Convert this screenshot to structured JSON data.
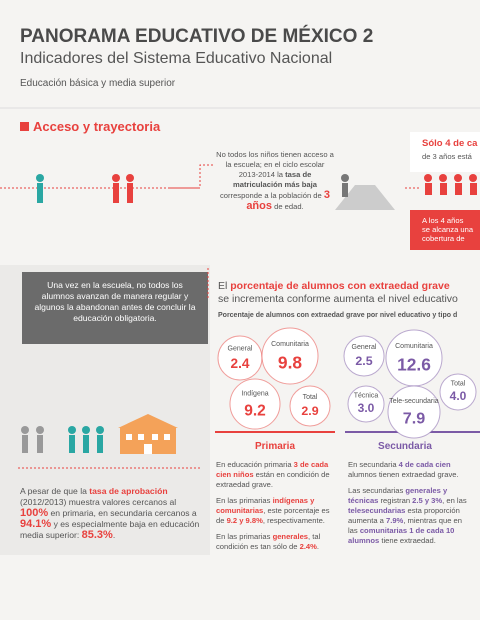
{
  "header": {
    "title": "PANORAMA EDUCATIVO DE MÉXICO 2",
    "subtitle": "Indicadores del Sistema Educativo Nacional",
    "scope": "Educación básica y media superior"
  },
  "access": {
    "heading": "Acceso y trayectoria",
    "note": [
      "No todos los niños tienen acceso a la escuela; en el ciclo escolar 2013-2014 la ",
      "tasa de matriculación más baja",
      " corresponde a la población de ",
      "3 años",
      " de edad."
    ],
    "side_title": "Sólo 4 de ca",
    "side_sub": "de 3 años está",
    "side_note": [
      "A los 4 años",
      "se alcanza una",
      "cobertura de"
    ]
  },
  "trajectory": {
    "intro": "Una vez en la escuela, no todos los alumnos avanzan de manera regular y algunos la abandonan antes de concluir la educación obligatoria.",
    "approval": [
      "A pesar de que la ",
      "tasa de aprobación",
      " (2012/2013) muestra valores cercanos al ",
      "100%",
      " en primaria, en secundaria cercanos a ",
      "94.1%",
      " y es especialmente baja en educación media superior: ",
      "85.3%",
      "."
    ]
  },
  "overage": {
    "title": [
      "El ",
      "porcentaje de alumnos con extraedad grave"
    ],
    "subtitle": "se incrementa conforme aumenta el nivel educativo",
    "caption": "Porcentaje de alumnos con extraedad grave por nivel educativo y tipo d",
    "primaria": {
      "label": "Primaria",
      "bubbles": [
        {
          "name": "General",
          "value": "2.4"
        },
        {
          "name": "Comunitaria",
          "value": "9.8"
        },
        {
          "name": "Indígena",
          "value": "9.2"
        },
        {
          "name": "Total",
          "value": "2.9"
        }
      ],
      "paragraphs": [
        [
          "En educación primaria ",
          "3 de cada cien niños",
          " están en condición de extraedad grave."
        ],
        [
          "En las primarias ",
          "indígenas y comunitarias",
          ", este porcentaje es de ",
          "9.2 y 9.8%",
          ", respectivamente."
        ],
        [
          "En las primarias ",
          "generales",
          ", tal condición es tan sólo de ",
          "2.4%",
          "."
        ]
      ]
    },
    "secundaria": {
      "label": "Secundaria",
      "bubbles": [
        {
          "name": "General",
          "value": "2.5"
        },
        {
          "name": "Comunitaria",
          "value": "12.6"
        },
        {
          "name": "Total",
          "value": "4.0"
        },
        {
          "name": "Técnica",
          "value": "3.0"
        },
        {
          "name": "Tele-secundaria",
          "value": "7.9"
        }
      ],
      "paragraphs": [
        [
          "En secundaria ",
          "4 de cada cien",
          " alumnos tienen extraedad grave."
        ],
        [
          "Las secundarias ",
          "generales y técnicas",
          " registran ",
          "2.5 y 3%",
          ", en las ",
          "telesecundarias",
          " esta proporción aumenta a ",
          "7.9%",
          ", mientras que en las ",
          "comunitarias",
          " ",
          "1 de cada 10 alumnos",
          " tiene extraedad."
        ]
      ]
    }
  }
}
